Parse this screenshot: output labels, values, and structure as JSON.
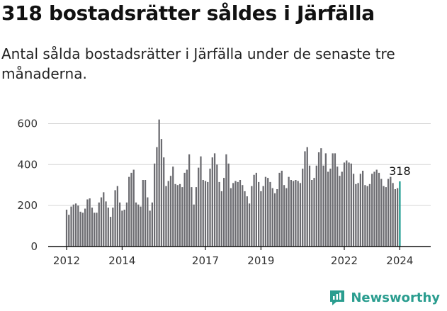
{
  "title": "318 bostadsrätter såldes i Järfälla",
  "subtitle": "Antal sålda bostadsrätter i Järfälla under de senaste tre månaderna.",
  "brand": {
    "name": "Newsworthy",
    "color": "#2a9d8f",
    "icon": "newsworthy-logo-icon"
  },
  "colors": {
    "bar": "#6b6b70",
    "highlight": "#1a9a8e",
    "axis": "#111111",
    "grid": "#d6d6d6"
  },
  "chart_data": {
    "type": "bar",
    "title": "318 bostadsrätter såldes i Järfälla",
    "subtitle": "Antal sålda bostadsrätter i Järfälla under de senaste tre månaderna.",
    "xlabel": "",
    "ylabel": "",
    "ylim": [
      0,
      650
    ],
    "yticks": [
      0,
      200,
      400,
      600
    ],
    "x_range": [
      2012.0,
      2024.5
    ],
    "xticks": [
      "2012",
      "2014",
      "2017",
      "2019",
      "2022",
      "2024"
    ],
    "grid": true,
    "legend": "none",
    "start": "2012-01",
    "highlight_label": "318",
    "series": [
      {
        "values": [
          180,
          155,
          195,
          205,
          210,
          200,
          170,
          165,
          185,
          230,
          235,
          190,
          165,
          165,
          215,
          240,
          265,
          220,
          190,
          145,
          190,
          275,
          295,
          215,
          175,
          180,
          215,
          340,
          360,
          375,
          215,
          205,
          195,
          325,
          325,
          240,
          175,
          215,
          405,
          485,
          620,
          525,
          435,
          295,
          320,
          345,
          390,
          305,
          300,
          305,
          290,
          360,
          375,
          450,
          290,
          205,
          290,
          385,
          440,
          325,
          320,
          315,
          380,
          435,
          455,
          400,
          315,
          270,
          335,
          450,
          405,
          285,
          310,
          320,
          315,
          325,
          300,
          270,
          245,
          210,
          295,
          350,
          360,
          315,
          270,
          295,
          340,
          335,
          315,
          285,
          260,
          280,
          360,
          370,
          300,
          285,
          340,
          325,
          320,
          325,
          320,
          310,
          380,
          465,
          485,
          395,
          325,
          335,
          395,
          460,
          480,
          395,
          455,
          365,
          380,
          455,
          455,
          390,
          345,
          365,
          410,
          420,
          410,
          405,
          355,
          305,
          310,
          355,
          370,
          300,
          295,
          305,
          355,
          365,
          375,
          360,
          330,
          295,
          290,
          330,
          340,
          310,
          280,
          285,
          318
        ]
      }
    ]
  }
}
